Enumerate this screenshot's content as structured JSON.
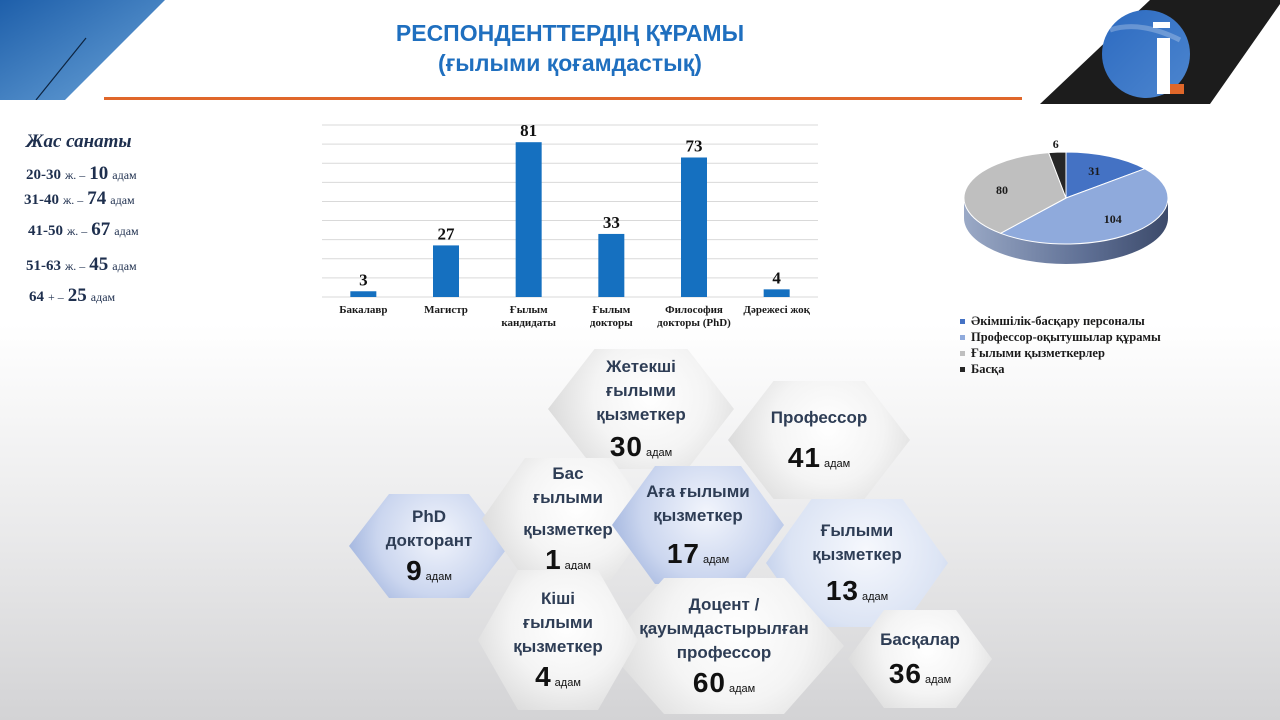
{
  "title": {
    "line1": "РЕСПОНДЕНТТЕРДІҢ ҚҰРАМЫ",
    "line2": "(ғылыми қоғамдастық)"
  },
  "colors": {
    "accent": "#1f6fbf",
    "title_rule": "#e0672a",
    "bar": "#1570c0"
  },
  "logo": {
    "icon": "brand-i-logo"
  },
  "age": {
    "heading": "Жас санаты",
    "rows": [
      {
        "range": "20-30",
        "suffix": "ж. –",
        "count": "10",
        "unit": "адам"
      },
      {
        "range": "31-40",
        "suffix": "ж. –",
        "count": "74",
        "unit": "адам"
      },
      {
        "range": "41-50",
        "suffix": "ж. –",
        "count": "67",
        "unit": "адам"
      },
      {
        "range": "51-63",
        "suffix": "ж. –",
        "count": "45",
        "unit": "адам"
      },
      {
        "range": "64",
        "suffix": "+ –",
        "count": "25",
        "unit": "адам"
      }
    ]
  },
  "chart_data": [
    {
      "type": "bar",
      "categories": [
        "Бакалавр",
        "Магистр",
        "Ғылым кандидаты",
        "Ғылым докторы",
        "Философия докторы (PhD)",
        "Дәрежесі жоқ"
      ],
      "category_lines": [
        [
          "Бакалавр"
        ],
        [
          "Магистр"
        ],
        [
          "Ғылым",
          "кандидаты"
        ],
        [
          "Ғылым",
          "докторы"
        ],
        [
          "Философия",
          "докторы (PhD)"
        ],
        [
          "Дәрежесі жоқ"
        ]
      ],
      "values": [
        3,
        27,
        81,
        33,
        73,
        4
      ],
      "ylim": [
        0,
        90
      ],
      "grid": true,
      "color": "#1570c0"
    },
    {
      "type": "pie",
      "labels": [
        "Әкімшілік-басқару персоналы",
        "Профессор-оқытушылар құрамы",
        "Ғылыми қызметкерлер",
        "Басқа"
      ],
      "values": [
        31,
        104,
        80,
        6
      ],
      "colors": [
        "#4472c4",
        "#8faadc",
        "#bfbfbf",
        "#262626"
      ],
      "legend": "bottom"
    }
  ],
  "hexagons": [
    {
      "id": "zhetekshi",
      "label_lines": [
        "Жетекші",
        "ғылыми",
        "қызметкер"
      ],
      "count": "30",
      "unit": "адам"
    },
    {
      "id": "professor",
      "label_lines": [
        "Профессор"
      ],
      "count": "41",
      "unit": "адам"
    },
    {
      "id": "bas",
      "label_lines": [
        "Бас",
        "ғылыми",
        "",
        "қызметкер"
      ],
      "count": "1",
      "unit": "адам"
    },
    {
      "id": "aga",
      "label_lines": [
        "Аға ғылыми",
        "қызметкер"
      ],
      "count": "17",
      "unit": "адам"
    },
    {
      "id": "phd",
      "label_lines": [
        "PhD",
        "докторант"
      ],
      "count": "9",
      "unit": "адам"
    },
    {
      "id": "gylymi",
      "label_lines": [
        "Ғылыми",
        "қызметкер"
      ],
      "count": "13",
      "unit": "адам"
    },
    {
      "id": "kishi",
      "label_lines": [
        "Кіші",
        "ғылыми",
        "қызметкер"
      ],
      "count": "4",
      "unit": "адам"
    },
    {
      "id": "docent",
      "label_lines": [
        "Доцент /",
        "қауымдастырылған",
        "профессор"
      ],
      "count": "60",
      "unit": "адам"
    },
    {
      "id": "baskalar",
      "label_lines": [
        "Басқалар"
      ],
      "count": "36",
      "unit": "адам"
    }
  ]
}
